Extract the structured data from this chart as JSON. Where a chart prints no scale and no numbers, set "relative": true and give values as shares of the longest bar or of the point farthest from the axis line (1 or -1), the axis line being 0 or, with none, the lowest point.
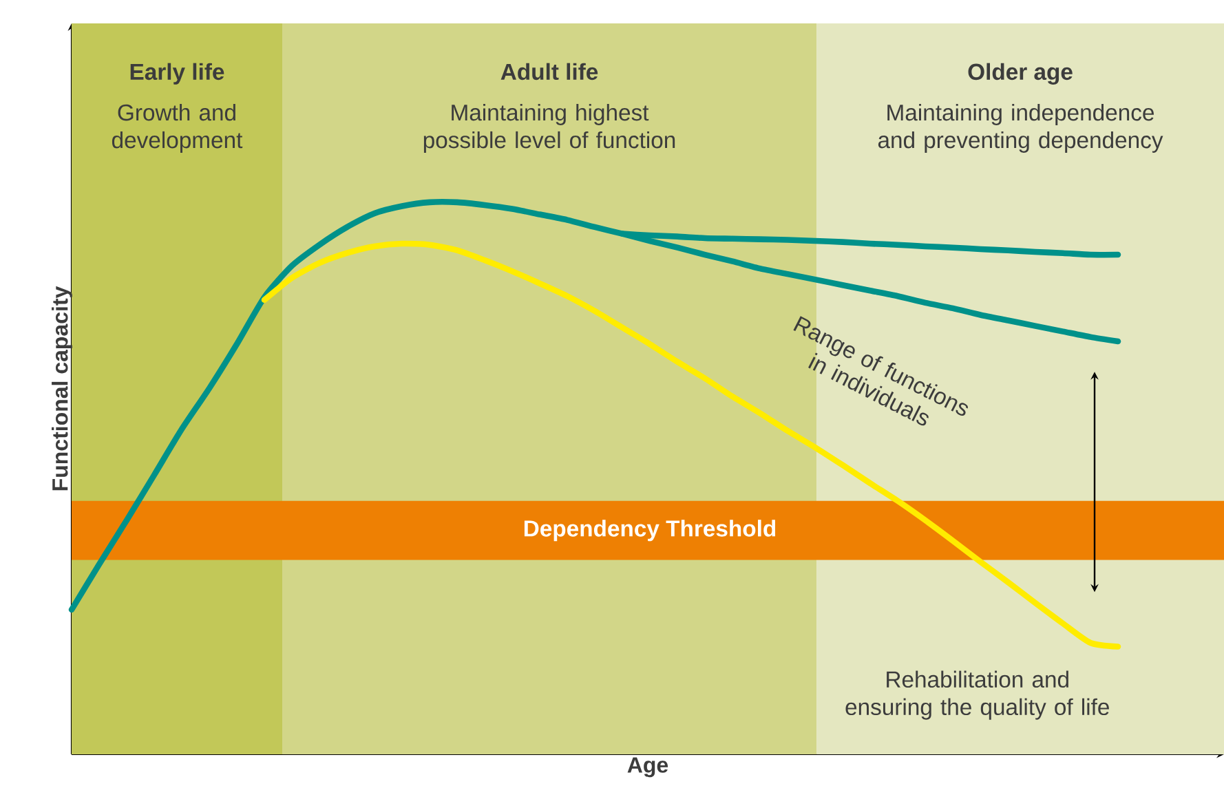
{
  "chart_data": {
    "type": "line",
    "relative": true,
    "xlabel": "Age",
    "ylabel": "Functional capacity",
    "categories": [
      null,
      null,
      null,
      null,
      null,
      null,
      null,
      null,
      null,
      null,
      null,
      null,
      null,
      null,
      null,
      null,
      null,
      null,
      null,
      null,
      null,
      null,
      null,
      null,
      null,
      null,
      null,
      null,
      null,
      null,
      null,
      null,
      null,
      null,
      null,
      null,
      null,
      null,
      null
    ],
    "series": [
      {
        "color": "#00918a",
        "values": [
          0.262,
          0.344,
          0.424,
          0.506,
          0.589,
          0.663,
          0.743,
          0.828,
          0.885,
          0.923,
          0.955,
          0.98,
          0.993,
          1,
          1,
          0.995,
          0.988,
          0.978,
          0.968,
          0.955,
          0.943,
          0.93,
          0.918,
          0.905,
          0.893,
          0.88,
          0.87,
          0.86,
          0.85,
          0.84,
          0.83,
          0.818,
          0.808,
          0.796,
          0.786,
          0.776,
          0.766,
          0.756,
          0.748
        ]
      },
      {
        "color": "#00918a",
        "values": [
          null,
          null,
          null,
          null,
          null,
          null,
          null,
          null,
          null,
          null,
          null,
          null,
          null,
          null,
          null,
          null,
          null,
          null,
          null,
          null,
          0.943,
          0.94,
          0.938,
          0.935,
          0.934,
          0.933,
          0.932,
          0.93,
          0.928,
          0.925,
          0.923,
          0.92,
          0.918,
          0.915,
          0.913,
          0.91,
          0.908,
          0.905,
          0.905
        ]
      },
      {
        "color": "#ffec00",
        "values": [
          null,
          null,
          null,
          null,
          null,
          null,
          null,
          0.823,
          0.863,
          0.89,
          0.908,
          0.92,
          0.925,
          0.923,
          0.913,
          0.895,
          0.875,
          0.853,
          0.83,
          0.803,
          0.773,
          0.743,
          0.711,
          0.681,
          0.648,
          0.618,
          0.586,
          0.556,
          0.524,
          0.491,
          0.459,
          0.424,
          0.387,
          0.349,
          0.312,
          0.274,
          0.237,
          0.202,
          0.195
        ]
      }
    ],
    "bands": [
      {
        "axis": "y",
        "from": 0.352,
        "to": 0.459,
        "label": "Dependency Threshold",
        "color": "#ee8003"
      }
    ],
    "annotations": [
      "Early life",
      "Growth and development",
      "Adult life",
      "Maintaining highest possible level of function",
      "Older age",
      "Maintaining independence and preventing dependency",
      "Range of functions in individuals",
      "Rehabilitation and ensuring the quality of life"
    ]
  }
}
